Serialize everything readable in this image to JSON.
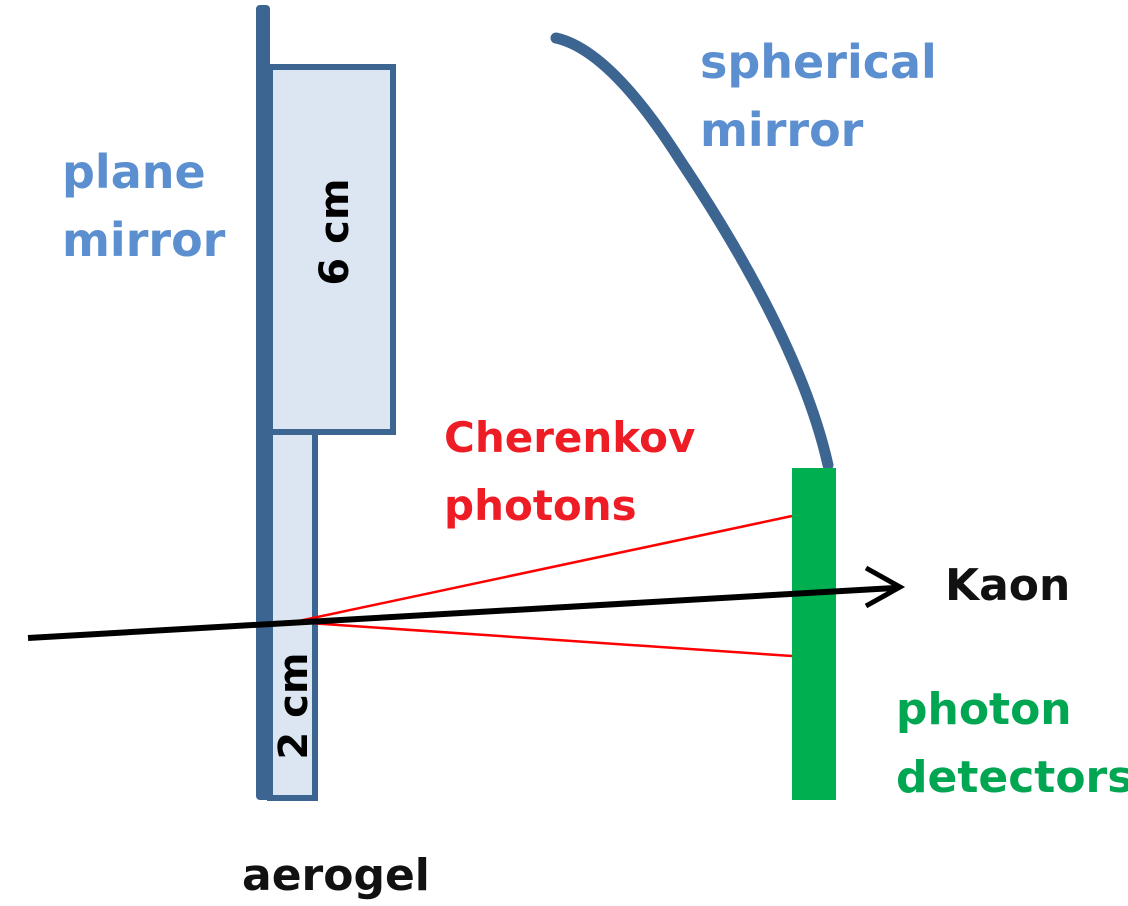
{
  "labels": {
    "plane_mirror": [
      "plane",
      "mirror"
    ],
    "spherical_mirror": [
      "spherical",
      "mirror"
    ],
    "cherenkov_photons": [
      "Cherenkov",
      "photons"
    ],
    "kaon": "Kaon",
    "photon_detectors": [
      "photon",
      "detectors"
    ],
    "aerogel": "aerogel",
    "aerogel_thick": "6 cm",
    "aerogel_thin": "2 cm"
  },
  "colors": {
    "mirror": "#3d6591",
    "aerogel_fill": "#dce6f2",
    "detector": "#00b050",
    "photon_ray": "#ff0000",
    "kaon_track": "#000000",
    "label_mirror": "#5b8fcf",
    "label_photons": "#ee1c24",
    "label_detectors": "#00a651"
  }
}
